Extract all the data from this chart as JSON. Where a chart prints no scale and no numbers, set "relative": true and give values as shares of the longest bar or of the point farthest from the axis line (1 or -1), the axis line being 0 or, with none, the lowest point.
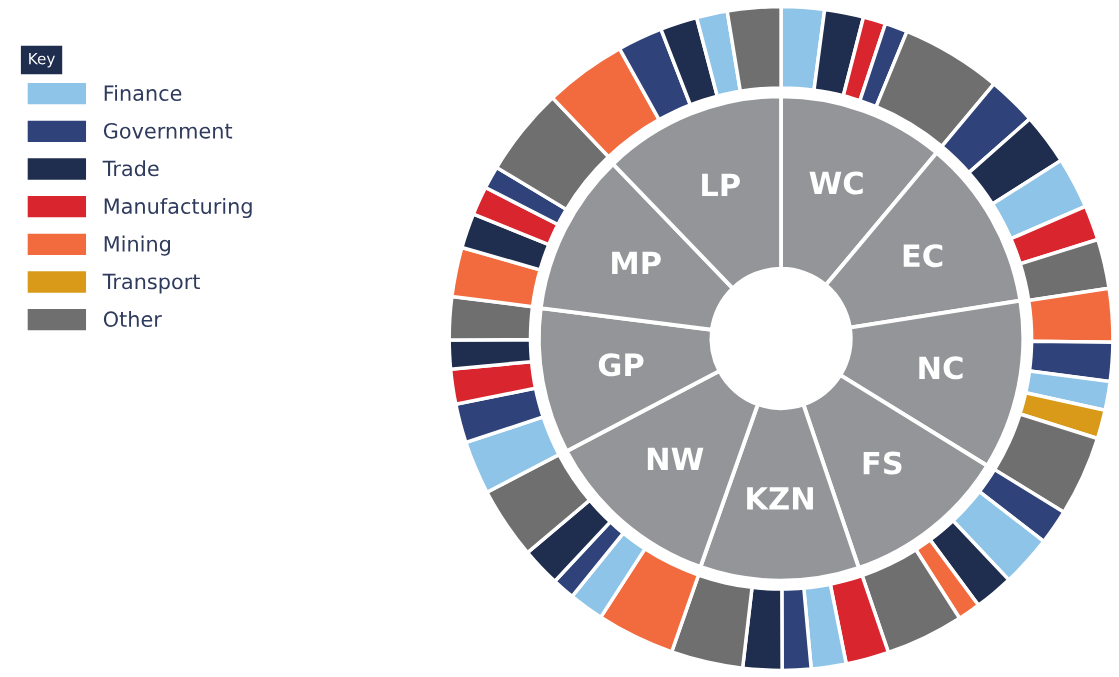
{
  "chart_data": [
    {
      "type": "donut",
      "relative": true,
      "categories": [
        "WC",
        null,
        null,
        null,
        null,
        "EC",
        null,
        null,
        null,
        null,
        "NC",
        null,
        null,
        null,
        null,
        "FS",
        null,
        null,
        null,
        null,
        "KZN",
        null,
        null,
        null,
        null,
        "NW",
        null,
        null,
        null,
        null,
        "GP",
        null,
        null,
        null,
        null,
        "MP",
        null,
        null,
        null,
        null,
        "LP",
        null,
        null,
        null,
        null
      ],
      "series": [
        {
          "color": "#939598",
          "values": [
            11.1,
            null,
            null,
            null,
            null,
            11.4,
            null,
            null,
            null,
            null,
            11.3,
            null,
            null,
            null,
            null,
            11.0,
            null,
            null,
            null,
            null,
            10.6,
            null,
            null,
            null,
            null,
            11.9,
            null,
            null,
            null,
            null,
            9.7,
            null,
            null,
            null,
            null,
            10.8,
            null,
            null,
            null,
            null,
            12.2,
            null,
            null,
            null,
            null
          ]
        },
        {
          "values": [
            2.1,
            1.9,
            1.1,
            1.1,
            4.9,
            2.4,
            2.5,
            2.5,
            1.7,
            2.4,
            2.6,
            1.9,
            1.4,
            1.4,
            3.9,
            1.7,
            2.5,
            1.9,
            1.1,
            3.8,
            2.1,
            1.7,
            1.4,
            1.9,
            3.5,
            3.8,
            1.7,
            1.1,
            1.9,
            3.5,
            2.6,
            1.9,
            1.7,
            1.4,
            2.1,
            2.4,
            1.7,
            1.4,
            1.1,
            4.3,
            4.0,
            2.2,
            1.8,
            1.5,
            2.6
          ],
          "colors": [
            "#8dc4e8",
            "#1f2d4e",
            "#d9262e",
            "#2f4279",
            "#6f6f6f",
            "#2f4279",
            "#1f2d4e",
            "#8dc4e8",
            "#d9262e",
            "#6f6f6f",
            "#f26b3f",
            "#2f4279",
            "#8dc4e8",
            "#d99a1a",
            "#6f6f6f",
            "#2f4279",
            "#8dc4e8",
            "#1f2d4e",
            "#f26b3f",
            "#6f6f6f",
            "#d9262e",
            "#8dc4e8",
            "#2f4279",
            "#1f2d4e",
            "#6f6f6f",
            "#f26b3f",
            "#8dc4e8",
            "#2f4279",
            "#1f2d4e",
            "#6f6f6f",
            "#8dc4e8",
            "#2f4279",
            "#d9262e",
            "#1f2d4e",
            "#6f6f6f",
            "#f26b3f",
            "#1f2d4e",
            "#d9262e",
            "#2f4279",
            "#6f6f6f",
            "#f26b3f",
            "#2f4279",
            "#1f2d4e",
            "#8dc4e8",
            "#6f6f6f"
          ]
        }
      ]
    },
    {
      "type": "other",
      "legend": "top left",
      "legend_title": "Key",
      "series": [
        {
          "name": "Finance",
          "color": "#8dc4e8"
        },
        {
          "name": "Government",
          "color": "#2f4279"
        },
        {
          "name": "Trade",
          "color": "#1f2d4e"
        },
        {
          "name": "Manufacturing",
          "color": "#d9262e"
        },
        {
          "name": "Mining",
          "color": "#f26b3f"
        },
        {
          "name": "Transport",
          "color": "#d99a1a"
        },
        {
          "name": "Other",
          "color": "#6f6f6f"
        }
      ]
    }
  ]
}
